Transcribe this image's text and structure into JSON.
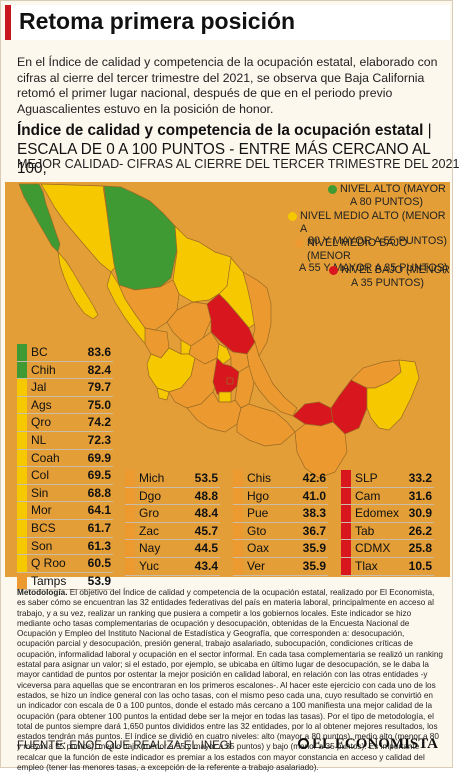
{
  "header": {
    "title": "Retoma primera posición"
  },
  "intro": "En el Índice de calidad y competencia de la ocupación estatal, elaborado con cifras al cierre del tercer trimestre del 2021, se observa que Baja California retomó el primer lugar nacional, después de que en el periodo previo Aguascalientes estuvo en la posición de honor.",
  "colors": {
    "alto": "#3f9a34",
    "medio_alto": "#f5c800",
    "medio_bajo": "#ec9a2f",
    "bajo": "#d8161e",
    "accent": "#c8161e",
    "map_background": "#e39e37"
  },
  "chart_data": {
    "type": "table",
    "title": "Índice de calidad y competencia de la ocupación estatal",
    "title_suffix": "ESCALA DE 0 A 100 PUNTOS - ENTRE MÁS CERCANO AL 100,",
    "subtitle": "MEJOR CALIDAD- CIFRAS AL CIERRE DEL TERCER TRIMESTRE DEL 2021",
    "legend": [
      {
        "label": "NIVEL ALTO (MAYOR A 80 PUNTOS)",
        "line1": "NIVEL ALTO (MAYOR",
        "line2": "A 80 PUNTOS)",
        "level": "alto"
      },
      {
        "label": "NIVEL MEDIO ALTO (MENOR A 80 Y MAYOR A 55 PUNTOS)",
        "line1": "NIVEL MEDIO ALTO (MENOR A",
        "line2": "80 Y MAYOR A 55 PUNTOS)",
        "level": "medio_alto"
      },
      {
        "label": "NIVEL MEDIO BAJO (MENOR A 55 Y MAYOR A 35 PUNTOS)",
        "line1": "NIVEL MEDIO BAJO (MENOR",
        "line2": "A 55 Y MAYOR A 35 PUNTOS)",
        "level": "medio_bajo"
      },
      {
        "label": "NIVEL BAJO (MENOR A 35 PUNTOS)",
        "line1": "NIVEL BAJO (MENOR",
        "line2": "A 35 PUNTOS)",
        "level": "bajo"
      }
    ],
    "legend_placement": "top-right",
    "columns": [
      [
        {
          "state": "BC",
          "value": "83.6",
          "level": "alto"
        },
        {
          "state": "Chih",
          "value": "82.4",
          "level": "alto"
        },
        {
          "state": "Jal",
          "value": "79.7",
          "level": "medio_alto"
        },
        {
          "state": "Ags",
          "value": "75.0",
          "level": "medio_alto"
        },
        {
          "state": "Qro",
          "value": "74.2",
          "level": "medio_alto"
        },
        {
          "state": "NL",
          "value": "72.3",
          "level": "medio_alto"
        },
        {
          "state": "Coah",
          "value": "69.9",
          "level": "medio_alto"
        },
        {
          "state": "Col",
          "value": "69.5",
          "level": "medio_alto"
        },
        {
          "state": "Sin",
          "value": "68.8",
          "level": "medio_alto"
        },
        {
          "state": "Mor",
          "value": "64.1",
          "level": "medio_alto"
        },
        {
          "state": "BCS",
          "value": "61.7",
          "level": "medio_alto"
        },
        {
          "state": "Son",
          "value": "61.3",
          "level": "medio_alto"
        },
        {
          "state": "Q Roo",
          "value": "60.5",
          "level": "medio_alto"
        },
        {
          "state": "Tamps",
          "value": "53.9",
          "level": "medio_bajo"
        }
      ],
      [
        {
          "state": "Mich",
          "value": "53.5",
          "level": "medio_bajo"
        },
        {
          "state": "Dgo",
          "value": "48.8",
          "level": "medio_bajo"
        },
        {
          "state": "Gro",
          "value": "48.4",
          "level": "medio_bajo"
        },
        {
          "state": "Zac",
          "value": "45.7",
          "level": "medio_bajo"
        },
        {
          "state": "Nay",
          "value": "44.5",
          "level": "medio_bajo"
        },
        {
          "state": "Yuc",
          "value": "43.4",
          "level": "medio_bajo"
        }
      ],
      [
        {
          "state": "Chis",
          "value": "42.6",
          "level": "medio_bajo"
        },
        {
          "state": "Hgo",
          "value": "41.0",
          "level": "medio_bajo"
        },
        {
          "state": "Pue",
          "value": "38.3",
          "level": "medio_bajo"
        },
        {
          "state": "Gto",
          "value": "36.7",
          "level": "medio_bajo"
        },
        {
          "state": "Oax",
          "value": "35.9",
          "level": "medio_bajo"
        },
        {
          "state": "Ver",
          "value": "35.9",
          "level": "medio_bajo"
        }
      ],
      [
        {
          "state": "SLP",
          "value": "33.2",
          "level": "bajo"
        },
        {
          "state": "Cam",
          "value": "31.6",
          "level": "bajo"
        },
        {
          "state": "Edomex",
          "value": "30.9",
          "level": "bajo"
        },
        {
          "state": "Tab",
          "value": "26.2",
          "level": "bajo"
        },
        {
          "state": "CDMX",
          "value": "25.8",
          "level": "bajo"
        },
        {
          "state": "Tlax",
          "value": "10.5",
          "level": "bajo"
        }
      ]
    ]
  },
  "methodology": {
    "label": "Metodología.",
    "text": "El objetivo del Índice de calidad y competencia de la ocupación estatal, realizado por El Economista, es saber cómo se encuentran las 32 entidades federativas del país en materia laboral, principalmente en acceso al trabajo, y a su vez, realizar un ranking que pusiera a competir a los gobiernos locales. Este indicador se hizo mediante ocho tasas complementarias de ocupación y desocupación, obtenidas de la Encuesta Nacional de Ocupación y Empleo del Instituto Nacional de Estadística y Geografía, que corresponden a: desocupación, ocupación parcial y desocupación, presión general, trabajo asalariado, subocupación, condiciones críticas de ocupación, informalidad laboral y ocupación en el sector informal. En cada tasa complementaria se realizó un ranking estatal para asignar un valor; si el estado, por ejemplo, se ubicaba en último lugar de desocupación, se le daba la mayor cantidad de puntos por ostentar la mejor posición en calidad laboral, en relación con las otras entidades -y viceversa para aquellas que se encontraran en los primeros escalones-. Al hacer este ejercicio con cada uno de los estados, se hizo un índice general con las ocho tasas, con el mismo peso cada una, cuyo resultado se convirtió en un indicador con escala de 0 a 100 puntos, donde el estado más cercano a 100 manifiesta una mejor calidad de la ocupación (para obtener 100 puntos la entidad debe ser la mejor en todas las tasas). Por el tipo de metodología, el total de puntos siempre dará 1,650 puntos divididos entre las 32 entidades, por lo al obtener mejores resultados, los estados tendrán más puntos. El índice se dividió en cuatro niveles: alto (mayor a 80 puntos), medio alto (menor a 80 y mayor a 55 puntos), medio bajo (menor a 55 y mayor a 35 puntos) y bajo (menor a 35 puntos). Es importante recalcar que la función de este indicador es premiar a los estados con mayor constancia en acceso y calidad del empleo (tener las menores tasas, a excepción de la referente a trabajo asalariado)."
  },
  "footer": {
    "source": "FUENTE: ENOE QUE REALIZA EL INEGI",
    "brand": "EL ECONOMISTA"
  }
}
